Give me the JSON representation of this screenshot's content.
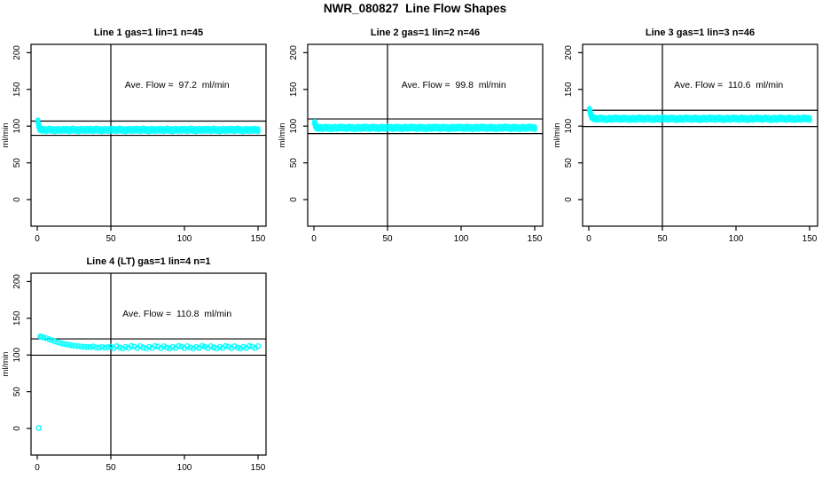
{
  "title": "NWR_080827  Line Flow Shapes",
  "colors": {
    "point": "#00ffff",
    "line": "#000000",
    "background": "#ffffff",
    "text": "#000000"
  },
  "chart_data": [
    {
      "type": "scatter",
      "title": "Line 1 gas=1 lin=1 n=45",
      "annotation": "Ave. Flow =  97.2  ml/min",
      "ave_flow_ml_min": 97.2,
      "ylabel": "ml/min",
      "xticks": [
        0,
        50,
        100,
        150
      ],
      "yticks": [
        0,
        50,
        100,
        150,
        200
      ],
      "xlim": [
        0,
        155
      ],
      "ylim": [
        -35,
        212
      ],
      "vline_x": 50,
      "ref_lines": [
        106.9,
        87.5
      ],
      "band_halfwidth": 2,
      "points": [
        [
          0.5,
          106.5
        ],
        [
          1,
          101
        ],
        [
          1.5,
          97.5
        ],
        [
          2,
          95.8
        ],
        [
          3,
          95.2
        ],
        [
          4,
          95.1
        ],
        [
          6,
          94.5
        ],
        [
          8,
          95.4
        ],
        [
          10,
          94.8
        ],
        [
          12,
          94.2
        ],
        [
          14,
          95.2
        ],
        [
          16,
          94.6
        ],
        [
          18,
          95
        ],
        [
          20,
          95.1
        ],
        [
          22,
          94.5
        ],
        [
          24,
          95.4
        ],
        [
          26,
          94.8
        ],
        [
          28,
          94.2
        ],
        [
          30,
          95.2
        ],
        [
          32,
          94.6
        ],
        [
          34,
          95
        ],
        [
          36,
          95.1
        ],
        [
          38,
          94.5
        ],
        [
          40,
          95.4
        ],
        [
          42,
          94.8
        ],
        [
          44,
          94.2
        ],
        [
          46,
          95.2
        ],
        [
          48,
          94.6
        ],
        [
          50,
          95
        ],
        [
          52,
          95.1
        ],
        [
          54,
          94.5
        ],
        [
          56,
          95.4
        ],
        [
          58,
          94.8
        ],
        [
          60,
          94.2
        ],
        [
          62,
          95.2
        ],
        [
          64,
          94.6
        ],
        [
          66,
          95
        ],
        [
          68,
          95.1
        ],
        [
          70,
          94.5
        ],
        [
          72,
          95.4
        ],
        [
          74,
          94.8
        ],
        [
          76,
          94.2
        ],
        [
          78,
          95.2
        ],
        [
          80,
          94.6
        ],
        [
          82,
          95
        ],
        [
          84,
          95.1
        ],
        [
          86,
          94.5
        ],
        [
          88,
          95.4
        ],
        [
          90,
          94.8
        ],
        [
          92,
          94.2
        ],
        [
          94,
          95.2
        ],
        [
          96,
          94.6
        ],
        [
          98,
          95
        ],
        [
          100,
          95.1
        ],
        [
          102,
          94.5
        ],
        [
          104,
          95.4
        ],
        [
          106,
          94.8
        ],
        [
          108,
          94.2
        ],
        [
          110,
          95.2
        ],
        [
          112,
          94.6
        ],
        [
          114,
          95
        ],
        [
          116,
          95.1
        ],
        [
          118,
          94.5
        ],
        [
          120,
          95.4
        ],
        [
          122,
          94.8
        ],
        [
          124,
          94.2
        ],
        [
          126,
          95.2
        ],
        [
          128,
          94.6
        ],
        [
          130,
          95
        ],
        [
          132,
          95.1
        ],
        [
          134,
          94.5
        ],
        [
          136,
          95.4
        ],
        [
          138,
          94.8
        ],
        [
          140,
          94.2
        ],
        [
          142,
          95.2
        ],
        [
          144,
          94.6
        ],
        [
          146,
          95
        ],
        [
          148,
          95.1
        ],
        [
          150,
          94.5
        ]
      ]
    },
    {
      "type": "scatter",
      "title": "Line 2 gas=1 lin=2 n=46",
      "annotation": "Ave. Flow =  99.8  ml/min",
      "ave_flow_ml_min": 99.8,
      "ylabel": "ml/min",
      "xticks": [
        0,
        50,
        100,
        150
      ],
      "yticks": [
        0,
        50,
        100,
        150,
        200
      ],
      "xlim": [
        0,
        155
      ],
      "ylim": [
        -35,
        212
      ],
      "vline_x": 50,
      "ref_lines": [
        109.8,
        89.8
      ],
      "band_halfwidth": 2,
      "points": [
        [
          0.5,
          104.5
        ],
        [
          1,
          101
        ],
        [
          1.5,
          99
        ],
        [
          2,
          98.2
        ],
        [
          3,
          97.8
        ],
        [
          4,
          97.9
        ],
        [
          6,
          97.3
        ],
        [
          8,
          98.2
        ],
        [
          10,
          97.6
        ],
        [
          12,
          97.1
        ],
        [
          14,
          98
        ],
        [
          16,
          97.5
        ],
        [
          18,
          98.3
        ],
        [
          20,
          97.9
        ],
        [
          22,
          97.3
        ],
        [
          24,
          98.2
        ],
        [
          26,
          97.6
        ],
        [
          28,
          97.1
        ],
        [
          30,
          98
        ],
        [
          32,
          97.5
        ],
        [
          34,
          98.3
        ],
        [
          36,
          97.9
        ],
        [
          38,
          97.3
        ],
        [
          40,
          98.2
        ],
        [
          42,
          97.6
        ],
        [
          44,
          97.1
        ],
        [
          46,
          98
        ],
        [
          48,
          97.5
        ],
        [
          50,
          98.3
        ],
        [
          52,
          97.9
        ],
        [
          54,
          97.3
        ],
        [
          56,
          98.2
        ],
        [
          58,
          97.6
        ],
        [
          60,
          97.1
        ],
        [
          62,
          98
        ],
        [
          64,
          97.5
        ],
        [
          66,
          98.3
        ],
        [
          68,
          97.9
        ],
        [
          70,
          97.3
        ],
        [
          72,
          98.2
        ],
        [
          74,
          97.6
        ],
        [
          76,
          97.1
        ],
        [
          78,
          98
        ],
        [
          80,
          97.5
        ],
        [
          82,
          98.3
        ],
        [
          84,
          97.9
        ],
        [
          86,
          97.3
        ],
        [
          88,
          98.2
        ],
        [
          90,
          97.6
        ],
        [
          92,
          97.1
        ],
        [
          94,
          98
        ],
        [
          96,
          97.5
        ],
        [
          98,
          98.3
        ],
        [
          100,
          97.9
        ],
        [
          102,
          97.3
        ],
        [
          104,
          98.2
        ],
        [
          106,
          97.6
        ],
        [
          108,
          97.1
        ],
        [
          110,
          98
        ],
        [
          112,
          97.5
        ],
        [
          114,
          98.3
        ],
        [
          116,
          97.9
        ],
        [
          118,
          97.3
        ],
        [
          120,
          98.2
        ],
        [
          122,
          97.6
        ],
        [
          124,
          97.1
        ],
        [
          126,
          98
        ],
        [
          128,
          97.5
        ],
        [
          130,
          98.3
        ],
        [
          132,
          97.9
        ],
        [
          134,
          97.3
        ],
        [
          136,
          98.2
        ],
        [
          138,
          97.6
        ],
        [
          140,
          97.1
        ],
        [
          142,
          98
        ],
        [
          144,
          97.5
        ],
        [
          146,
          98.3
        ],
        [
          148,
          97.9
        ],
        [
          150,
          97.3
        ]
      ]
    },
    {
      "type": "scatter",
      "title": "Line 3 gas=1 lin=3 n=46",
      "annotation": "Ave. Flow =  110.6  ml/min",
      "ave_flow_ml_min": 110.6,
      "ylabel": "ml/min",
      "xticks": [
        0,
        50,
        100,
        150
      ],
      "yticks": [
        0,
        50,
        100,
        150,
        200
      ],
      "xlim": [
        0,
        155
      ],
      "ylim": [
        -35,
        212
      ],
      "vline_x": 50,
      "ref_lines": [
        121.7,
        99.5
      ],
      "band_halfwidth": 2,
      "points": [
        [
          0.5,
          122.3
        ],
        [
          1,
          118.2
        ],
        [
          1.5,
          114.8
        ],
        [
          2,
          112.6
        ],
        [
          3,
          111.3
        ],
        [
          4,
          110.3
        ],
        [
          6,
          109.7
        ],
        [
          8,
          110.6
        ],
        [
          10,
          110
        ],
        [
          12,
          109.4
        ],
        [
          14,
          110.4
        ],
        [
          16,
          109.8
        ],
        [
          18,
          110.7
        ],
        [
          20,
          110.3
        ],
        [
          22,
          109.7
        ],
        [
          24,
          110.6
        ],
        [
          26,
          110
        ],
        [
          28,
          109.4
        ],
        [
          30,
          110.4
        ],
        [
          32,
          109.8
        ],
        [
          34,
          110.7
        ],
        [
          36,
          110.3
        ],
        [
          38,
          109.7
        ],
        [
          40,
          110.6
        ],
        [
          42,
          110
        ],
        [
          44,
          109.4
        ],
        [
          46,
          110.4
        ],
        [
          48,
          109.8
        ],
        [
          50,
          110.7
        ],
        [
          52,
          110.3
        ],
        [
          54,
          109.7
        ],
        [
          56,
          110.6
        ],
        [
          58,
          110
        ],
        [
          60,
          109.4
        ],
        [
          62,
          110.4
        ],
        [
          64,
          109.8
        ],
        [
          66,
          110.7
        ],
        [
          68,
          110.3
        ],
        [
          70,
          109.7
        ],
        [
          72,
          110.6
        ],
        [
          74,
          110
        ],
        [
          76,
          109.4
        ],
        [
          78,
          110.4
        ],
        [
          80,
          109.8
        ],
        [
          82,
          110.7
        ],
        [
          84,
          110.3
        ],
        [
          86,
          109.7
        ],
        [
          88,
          110.6
        ],
        [
          90,
          110
        ],
        [
          92,
          109.4
        ],
        [
          94,
          110.4
        ],
        [
          96,
          109.8
        ],
        [
          98,
          110.7
        ],
        [
          100,
          110.3
        ],
        [
          102,
          109.7
        ],
        [
          104,
          110.6
        ],
        [
          106,
          110
        ],
        [
          108,
          109.4
        ],
        [
          110,
          110.4
        ],
        [
          112,
          109.8
        ],
        [
          114,
          110.7
        ],
        [
          116,
          110.3
        ],
        [
          118,
          109.7
        ],
        [
          120,
          110.6
        ],
        [
          122,
          110
        ],
        [
          124,
          109.4
        ],
        [
          126,
          110.4
        ],
        [
          128,
          109.8
        ],
        [
          130,
          110.7
        ],
        [
          132,
          110.3
        ],
        [
          134,
          109.7
        ],
        [
          136,
          110.6
        ],
        [
          138,
          110
        ],
        [
          140,
          109.4
        ],
        [
          142,
          110.4
        ],
        [
          144,
          109.8
        ],
        [
          146,
          110.7
        ],
        [
          148,
          110.3
        ],
        [
          150,
          109.7
        ]
      ]
    },
    {
      "type": "scatter",
      "title": "Line 4 (LT) gas=1 lin=4 n=1",
      "annotation": "Ave. Flow =  110.8  ml/min",
      "ave_flow_ml_min": 110.8,
      "ylabel": "ml/min",
      "xticks": [
        0,
        50,
        100,
        150
      ],
      "yticks": [
        0,
        50,
        100,
        150,
        200
      ],
      "xlim": [
        0,
        155
      ],
      "ylim": [
        -35,
        212
      ],
      "vline_x": 50,
      "ref_lines": [
        121.9,
        99.7
      ],
      "band_halfwidth": 0,
      "points": [
        [
          1,
          0.5
        ],
        [
          2,
          125.2
        ],
        [
          3,
          124.7
        ],
        [
          4,
          124.1
        ],
        [
          6,
          122.9
        ],
        [
          8,
          121.5
        ],
        [
          10,
          119.9
        ],
        [
          12,
          118.5
        ],
        [
          14,
          117.3
        ],
        [
          16,
          116.2
        ],
        [
          18,
          115.2
        ],
        [
          20,
          114.4
        ],
        [
          22,
          113.6
        ],
        [
          24,
          113
        ],
        [
          26,
          112.4
        ],
        [
          28,
          111.9
        ],
        [
          30,
          111.5
        ],
        [
          32,
          111.2
        ],
        [
          34,
          110.9
        ],
        [
          36,
          110.7
        ],
        [
          38,
          111.6
        ],
        [
          40,
          110.3
        ],
        [
          42,
          110.1
        ],
        [
          44,
          111
        ],
        [
          46,
          109.9
        ],
        [
          48,
          110.7
        ],
        [
          50,
          111.4
        ],
        [
          52,
          109.4
        ],
        [
          54,
          112
        ],
        [
          56,
          110.2
        ],
        [
          58,
          108.9
        ],
        [
          60,
          111.1
        ],
        [
          62,
          109.6
        ],
        [
          64,
          112.2
        ],
        [
          66,
          111.4
        ],
        [
          68,
          109.4
        ],
        [
          70,
          112
        ],
        [
          72,
          110.2
        ],
        [
          74,
          108.9
        ],
        [
          76,
          111.1
        ],
        [
          78,
          109.6
        ],
        [
          80,
          112.2
        ],
        [
          82,
          111.4
        ],
        [
          84,
          109.4
        ],
        [
          86,
          112
        ],
        [
          88,
          110.2
        ],
        [
          90,
          108.9
        ],
        [
          92,
          111.1
        ],
        [
          94,
          109.6
        ],
        [
          96,
          112.2
        ],
        [
          98,
          111.4
        ],
        [
          100,
          109.4
        ],
        [
          102,
          112
        ],
        [
          104,
          110.2
        ],
        [
          106,
          108.9
        ],
        [
          108,
          111.1
        ],
        [
          110,
          109.6
        ],
        [
          112,
          112.2
        ],
        [
          114,
          111.4
        ],
        [
          116,
          109.4
        ],
        [
          118,
          112
        ],
        [
          120,
          110.2
        ],
        [
          122,
          108.9
        ],
        [
          124,
          111.1
        ],
        [
          126,
          109.6
        ],
        [
          128,
          112.2
        ],
        [
          130,
          111.4
        ],
        [
          132,
          109.4
        ],
        [
          134,
          112
        ],
        [
          136,
          110.2
        ],
        [
          138,
          108.9
        ],
        [
          140,
          111.1
        ],
        [
          142,
          109.6
        ],
        [
          144,
          112.2
        ],
        [
          146,
          111.4
        ],
        [
          148,
          109.4
        ],
        [
          150,
          112
        ]
      ]
    }
  ]
}
